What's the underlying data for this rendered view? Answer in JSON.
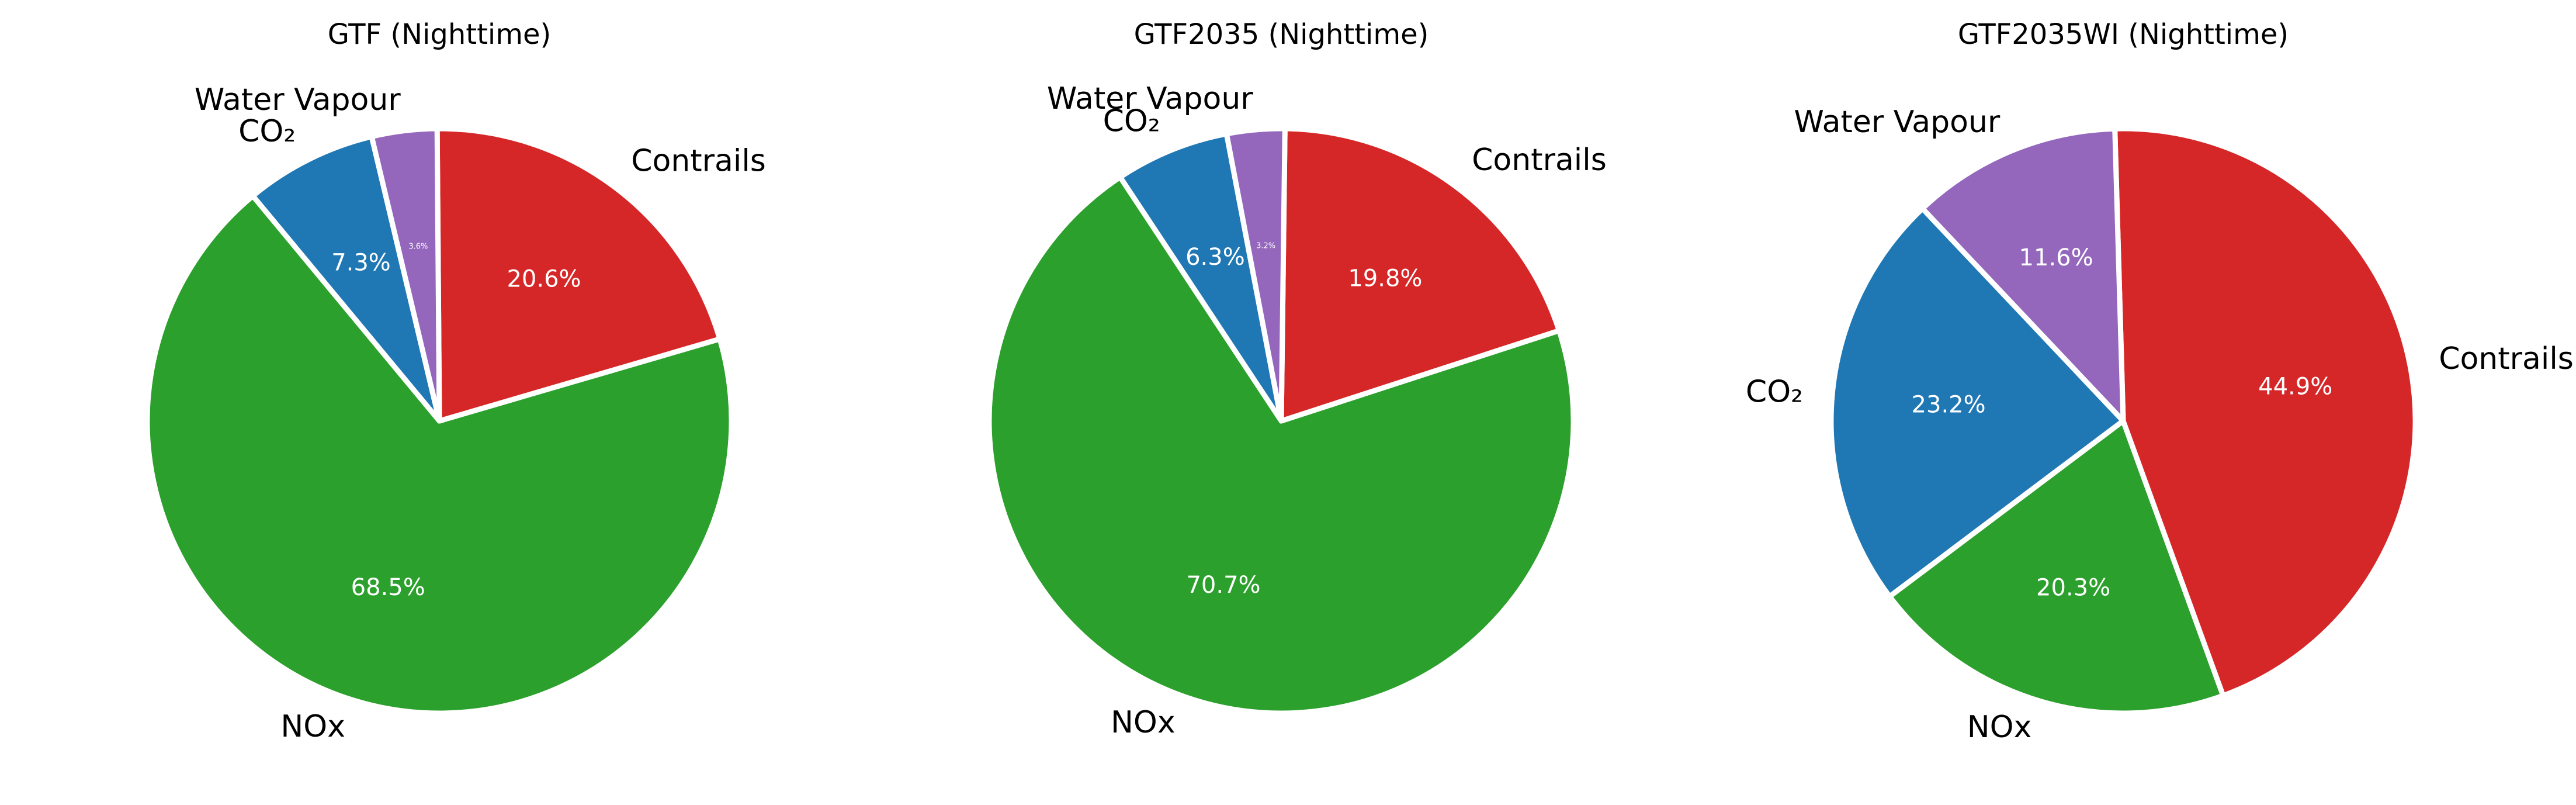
{
  "chart_data": [
    {
      "type": "pie",
      "title": "GTF (Nighttime)",
      "start_angle_deg": 103.4,
      "direction": "counterclockwise",
      "slices": [
        {
          "label": "CO₂",
          "value": 7.3,
          "pct_label": "7.3%",
          "color": "#1f77b4"
        },
        {
          "label": "NOx",
          "value": 68.5,
          "pct_label": "68.5%",
          "color": "#2ca02c"
        },
        {
          "label": "Contrails",
          "value": 20.6,
          "pct_label": "20.6%",
          "color": "#d62728"
        },
        {
          "label": "Water Vapour",
          "value": 3.6,
          "pct_label": "3.6%",
          "color": "#9467bd"
        }
      ]
    },
    {
      "type": "pie",
      "title": "GTF2035 (Nighttime)",
      "start_angle_deg": 100.8,
      "direction": "counterclockwise",
      "slices": [
        {
          "label": "CO₂",
          "value": 6.3,
          "pct_label": "6.3%",
          "color": "#1f77b4"
        },
        {
          "label": "NOx",
          "value": 70.7,
          "pct_label": "70.7%",
          "color": "#2ca02c"
        },
        {
          "label": "Contrails",
          "value": 19.8,
          "pct_label": "19.8%",
          "color": "#d62728"
        },
        {
          "label": "Water Vapour",
          "value": 3.2,
          "pct_label": "3.2%",
          "color": "#9467bd"
        }
      ]
    },
    {
      "type": "pie",
      "title": "GTF2035WI (Nighttime)",
      "start_angle_deg": 133.4,
      "direction": "counterclockwise",
      "slices": [
        {
          "label": "CO₂",
          "value": 23.2,
          "pct_label": "23.2%",
          "color": "#1f77b4"
        },
        {
          "label": "NOx",
          "value": 20.3,
          "pct_label": "20.3%",
          "color": "#2ca02c"
        },
        {
          "label": "Contrails",
          "value": 44.9,
          "pct_label": "44.9%",
          "color": "#d62728"
        },
        {
          "label": "Water Vapour",
          "value": 11.6,
          "pct_label": "11.6%",
          "color": "#9467bd"
        }
      ]
    }
  ]
}
